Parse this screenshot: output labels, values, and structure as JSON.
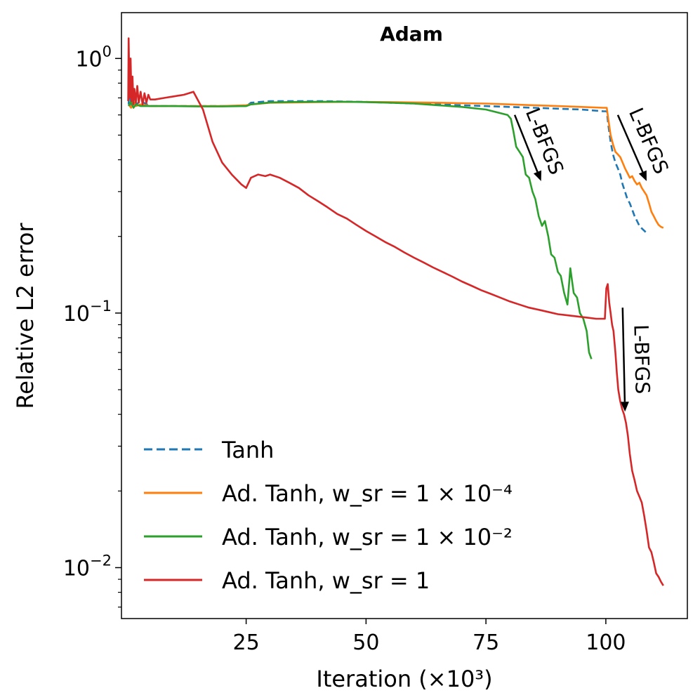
{
  "chart_data": {
    "type": "line",
    "title": "Adam",
    "xlabel": "Iteration (×10³)",
    "ylabel": "Relative L2 error",
    "xlim": [
      -1,
      117
    ],
    "ylim_log10": [
      -2.2,
      0.18
    ],
    "yscale": "log",
    "x_ticks": [
      {
        "value": 25,
        "label": "25"
      },
      {
        "value": 50,
        "label": "50"
      },
      {
        "value": 75,
        "label": "75"
      },
      {
        "value": 100,
        "label": "100"
      }
    ],
    "y_ticks": [
      {
        "value": 1,
        "label_base": "10",
        "label_exp": "0"
      },
      {
        "value": 0.1,
        "label_base": "10",
        "label_exp": "−1"
      },
      {
        "value": 0.01,
        "label_base": "10",
        "label_exp": "−2"
      }
    ],
    "legend": {
      "position": "lower-left",
      "entries": [
        {
          "series": "tanh",
          "text": "Tanh"
        },
        {
          "series": "adtanh_1e4",
          "text": "Ad. Tanh, w_sr = 1 × 10⁻⁴"
        },
        {
          "series": "adtanh_1e2",
          "text": "Ad. Tanh, w_sr = 1 × 10⁻²"
        },
        {
          "series": "adtanh_1",
          "text": "Ad. Tanh, w_sr = 1"
        }
      ]
    },
    "annotations": [
      {
        "text": "L-BFGS",
        "x_from": 81,
        "x_to": 86.5,
        "y_from": 0.6,
        "y_to": 0.33
      },
      {
        "text": "L-BFGS",
        "x_from": 102.5,
        "x_to": 108.5,
        "y_from": 0.6,
        "y_to": 0.33
      },
      {
        "text": "L-BFGS",
        "x_from": 103.5,
        "x_to": 104,
        "y_from": 0.105,
        "y_to": 0.041
      }
    ],
    "series": [
      {
        "id": "tanh",
        "name": "Tanh",
        "color": "#1f77b4",
        "dash": true,
        "x": [
          0.5,
          0.7,
          1,
          1.5,
          2,
          3,
          5,
          10,
          15,
          20,
          25,
          26,
          30,
          35,
          40,
          45,
          50,
          55,
          60,
          65,
          70,
          75,
          80,
          85,
          90,
          95,
          99.5,
          100.2,
          100.5,
          101,
          101.5,
          102,
          102.5,
          103,
          103.5,
          104,
          104.5,
          105,
          105.5,
          106,
          106.5,
          107,
          107.5,
          108.3
        ],
        "y": [
          0.66,
          0.82,
          0.65,
          0.72,
          0.66,
          0.68,
          0.65,
          0.65,
          0.65,
          0.65,
          0.65,
          0.67,
          0.68,
          0.68,
          0.68,
          0.678,
          0.675,
          0.67,
          0.665,
          0.66,
          0.655,
          0.65,
          0.645,
          0.64,
          0.635,
          0.63,
          0.62,
          0.62,
          0.55,
          0.47,
          0.42,
          0.39,
          0.37,
          0.35,
          0.32,
          0.3,
          0.28,
          0.27,
          0.255,
          0.24,
          0.23,
          0.22,
          0.215,
          0.208
        ]
      },
      {
        "id": "adtanh_1e4",
        "name": "Ad. Tanh, w_sr = 1 × 10⁻⁴",
        "color": "#ff7f0e",
        "dash": false,
        "x": [
          0.5,
          1,
          1.5,
          2,
          3,
          5,
          10,
          15,
          20,
          25,
          26,
          30,
          35,
          40,
          45,
          50,
          55,
          60,
          65,
          70,
          75,
          80,
          85,
          90,
          95,
          99.5,
          100.2,
          100.5,
          101,
          101.5,
          102,
          102.5,
          103,
          103.5,
          104,
          104.5,
          105,
          105.5,
          106,
          106.5,
          107,
          107.5,
          108,
          108.5,
          109,
          109.5,
          110,
          110.5,
          111,
          111.5,
          112
        ],
        "y": [
          0.66,
          0.64,
          0.68,
          0.65,
          0.66,
          0.65,
          0.65,
          0.65,
          0.65,
          0.655,
          0.66,
          0.67,
          0.672,
          0.674,
          0.675,
          0.675,
          0.674,
          0.672,
          0.67,
          0.667,
          0.665,
          0.66,
          0.655,
          0.65,
          0.645,
          0.64,
          0.64,
          0.58,
          0.5,
          0.46,
          0.43,
          0.42,
          0.41,
          0.39,
          0.37,
          0.355,
          0.34,
          0.345,
          0.33,
          0.32,
          0.325,
          0.31,
          0.3,
          0.29,
          0.27,
          0.25,
          0.24,
          0.23,
          0.222,
          0.218,
          0.216
        ]
      },
      {
        "id": "adtanh_1e2",
        "name": "Ad. Tanh, w_sr = 1 × 10⁻²",
        "color": "#2ca02c",
        "dash": false,
        "x": [
          0.5,
          1,
          1.5,
          2,
          3,
          5,
          10,
          15,
          20,
          25,
          26,
          30,
          35,
          40,
          45,
          50,
          55,
          60,
          65,
          70,
          75,
          79.5,
          80.2,
          80.7,
          81.3,
          82,
          82.7,
          83.3,
          84,
          84.7,
          85.3,
          86,
          86.7,
          87.3,
          88,
          88.6,
          89.3,
          90,
          90.6,
          91.3,
          92,
          92.6,
          93.3,
          94,
          94.6,
          95.3,
          96,
          96.5,
          97
        ],
        "y": [
          0.65,
          0.68,
          0.64,
          0.66,
          0.65,
          0.65,
          0.65,
          0.648,
          0.648,
          0.65,
          0.66,
          0.672,
          0.675,
          0.676,
          0.676,
          0.674,
          0.67,
          0.665,
          0.655,
          0.645,
          0.63,
          0.6,
          0.58,
          0.52,
          0.45,
          0.43,
          0.41,
          0.35,
          0.34,
          0.3,
          0.28,
          0.24,
          0.22,
          0.23,
          0.2,
          0.17,
          0.165,
          0.145,
          0.14,
          0.12,
          0.108,
          0.15,
          0.12,
          0.115,
          0.1,
          0.095,
          0.085,
          0.07,
          0.066
        ]
      },
      {
        "id": "adtanh_1",
        "name": "Ad. Tanh, w_sr = 1",
        "color": "#d62728",
        "dash": false,
        "x": [
          0.4,
          0.5,
          0.7,
          0.9,
          1.1,
          1.3,
          1.5,
          1.7,
          2,
          2.3,
          2.6,
          3,
          3.4,
          3.8,
          4.2,
          4.6,
          5,
          6,
          8,
          10,
          12,
          14,
          16,
          18,
          20,
          22,
          24,
          25,
          26,
          27.5,
          29,
          30,
          32,
          34,
          36,
          38,
          40,
          42,
          44,
          46,
          48,
          50,
          52,
          54,
          56,
          58,
          60,
          62,
          64,
          66,
          68,
          70,
          72,
          74,
          76,
          78,
          80,
          82,
          84,
          86,
          88,
          90,
          92,
          94,
          96,
          98,
          99.8,
          100.1,
          100.4,
          100.7,
          101,
          101.3,
          101.6,
          102,
          102.3,
          102.6,
          103,
          103.4,
          103.8,
          104.2,
          104.6,
          105,
          105.5,
          106,
          106.5,
          107,
          107.5,
          108,
          108.5,
          109,
          109.5,
          110,
          110.5,
          111,
          111.5,
          112
        ],
        "y": [
          0.68,
          1.2,
          0.7,
          1.0,
          0.68,
          0.85,
          0.66,
          0.76,
          0.67,
          0.78,
          0.67,
          0.74,
          0.66,
          0.73,
          0.67,
          0.72,
          0.69,
          0.69,
          0.7,
          0.71,
          0.72,
          0.74,
          0.63,
          0.47,
          0.39,
          0.35,
          0.32,
          0.31,
          0.34,
          0.35,
          0.345,
          0.35,
          0.34,
          0.325,
          0.31,
          0.29,
          0.275,
          0.26,
          0.245,
          0.235,
          0.222,
          0.21,
          0.2,
          0.19,
          0.182,
          0.173,
          0.165,
          0.158,
          0.151,
          0.145,
          0.139,
          0.133,
          0.128,
          0.123,
          0.119,
          0.115,
          0.111,
          0.108,
          0.105,
          0.103,
          0.101,
          0.099,
          0.098,
          0.097,
          0.096,
          0.095,
          0.095,
          0.125,
          0.13,
          0.11,
          0.1,
          0.09,
          0.085,
          0.07,
          0.058,
          0.05,
          0.045,
          0.042,
          0.04,
          0.037,
          0.033,
          0.028,
          0.024,
          0.022,
          0.02,
          0.019,
          0.018,
          0.016,
          0.014,
          0.012,
          0.0115,
          0.0105,
          0.0095,
          0.0092,
          0.0088,
          0.0085
        ]
      }
    ]
  }
}
